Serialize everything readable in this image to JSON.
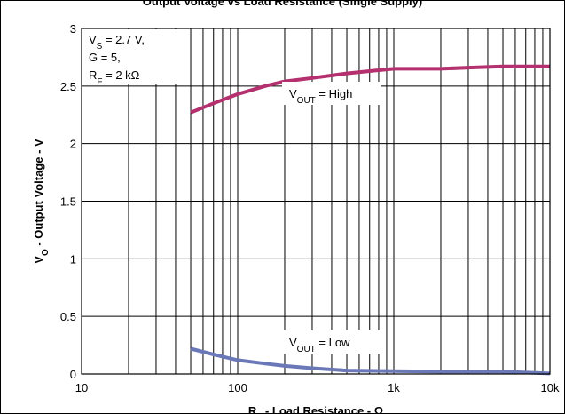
{
  "chart_data": {
    "type": "line",
    "title": "Output Voltage vs Load Resistance (Single Supply)",
    "xlabel": {
      "prefix": "R",
      "sub": "L",
      "suffix": " - Load Resistance - Ω"
    },
    "ylabel": {
      "prefix": "V",
      "sub": "O",
      "suffix": " - Output Voltage - V"
    },
    "xscale": "log",
    "xlim": [
      10,
      10000
    ],
    "ylim": [
      0,
      3
    ],
    "grid": true,
    "x_ticks": [
      {
        "value": 10,
        "label": "10"
      },
      {
        "value": 100,
        "label": "100"
      },
      {
        "value": 1000,
        "label": "1k"
      },
      {
        "value": 10000,
        "label": "10k"
      }
    ],
    "y_ticks": [
      {
        "value": 0,
        "label": "0"
      },
      {
        "value": 0.5,
        "label": "0.5"
      },
      {
        "value": 1,
        "label": "1"
      },
      {
        "value": 1.5,
        "label": "1.5"
      },
      {
        "value": 2,
        "label": "2"
      },
      {
        "value": 2.5,
        "label": "2.5"
      },
      {
        "value": 3,
        "label": "3"
      }
    ],
    "conditions": [
      {
        "prefix": "V",
        "sub": "S",
        "suffix": " = 2.7 V,"
      },
      {
        "prefix": "G = 5,",
        "sub": "",
        "suffix": ""
      },
      {
        "prefix": "R",
        "sub": "F",
        "suffix": " = 2 kΩ"
      }
    ],
    "series": [
      {
        "name": "V_OUT = High",
        "label": {
          "prefix": "V",
          "sub": "OUT",
          "suffix": " = High"
        },
        "color": "#b5306e",
        "x": [
          50,
          70,
          100,
          150,
          200,
          300,
          500,
          700,
          1000,
          2000,
          3000,
          5000,
          10000
        ],
        "y": [
          2.27,
          2.35,
          2.43,
          2.5,
          2.54,
          2.57,
          2.61,
          2.63,
          2.65,
          2.65,
          2.66,
          2.67,
          2.67
        ]
      },
      {
        "name": "V_OUT = Low",
        "label": {
          "prefix": "V",
          "sub": "OUT",
          "suffix": " = Low"
        },
        "color": "#6b78b8",
        "x": [
          50,
          70,
          100,
          150,
          200,
          300,
          500,
          1000,
          2000,
          5000,
          10000
        ],
        "y": [
          0.22,
          0.17,
          0.12,
          0.09,
          0.07,
          0.05,
          0.03,
          0.025,
          0.02,
          0.02,
          0.005
        ]
      }
    ]
  }
}
